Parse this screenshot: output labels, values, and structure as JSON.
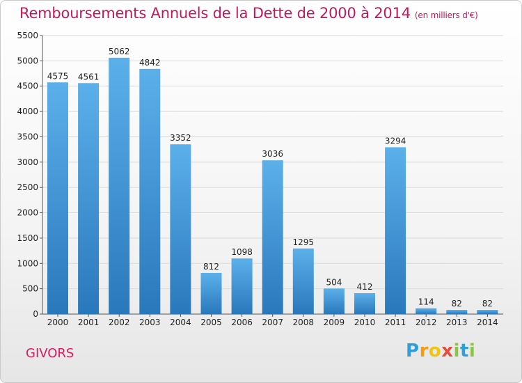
{
  "title": "Remboursements Annuels de la Dette de 2000 à 2014",
  "subtitle": "(en milliers d'€)",
  "commune": "GIVORS",
  "logo": {
    "letters": [
      "P",
      "r",
      "o",
      "x",
      "i",
      "t",
      "i"
    ],
    "colors": [
      "#2e9fd8",
      "#f39c12",
      "#f1c40f",
      "#e74c3c",
      "#8bc34a",
      "#2e9fd8",
      "#8bc34a"
    ]
  },
  "colors": {
    "bar": "#3a8fd0",
    "title": "#c2185b"
  },
  "chart_data": {
    "type": "bar",
    "title": "Remboursements Annuels de la Dette de 2000 à 2014",
    "subtitle": "(en milliers d'€)",
    "xlabel": "",
    "ylabel": "",
    "categories": [
      "2000",
      "2001",
      "2002",
      "2003",
      "2004",
      "2005",
      "2006",
      "2007",
      "2008",
      "2009",
      "2010",
      "2011",
      "2012",
      "2013",
      "2014"
    ],
    "values": [
      4575,
      4561,
      5062,
      4842,
      3352,
      812,
      1098,
      3036,
      1295,
      504,
      412,
      3294,
      114,
      82,
      82
    ],
    "ylim": [
      0,
      5500
    ],
    "yticks": [
      0,
      500,
      1000,
      1500,
      2000,
      2500,
      3000,
      3500,
      4000,
      4500,
      5000,
      5500
    ],
    "grid": true,
    "legend": "none"
  }
}
